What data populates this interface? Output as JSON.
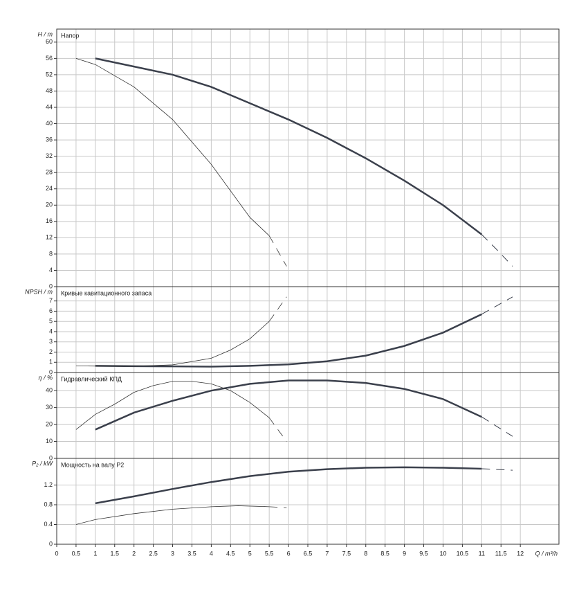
{
  "chart_data": [
    {
      "type": "line",
      "title": "Напор",
      "ylabel": "H / m",
      "xlim": [
        0,
        13
      ],
      "ylim": [
        0,
        63.2
      ],
      "xticks": [
        0,
        0.5,
        1,
        1.5,
        2,
        2.5,
        3,
        3.5,
        4,
        4.5,
        5,
        5.5,
        6,
        6.5,
        7,
        7.5,
        8,
        8.5,
        9,
        9.5,
        10,
        10.5,
        11,
        11.5,
        12
      ],
      "yticks": [
        0,
        4,
        8,
        12,
        16,
        20,
        24,
        28,
        32,
        36,
        40,
        44,
        48,
        52,
        56,
        60
      ],
      "grid": true,
      "series": [
        {
          "color": "#3b404c",
          "width": 2.5,
          "dash": false,
          "x": [
            1,
            2,
            3,
            4,
            5,
            6,
            7,
            8,
            9,
            10,
            11
          ],
          "values": [
            56,
            54,
            52,
            49,
            45,
            41,
            36.5,
            31.5,
            26,
            20,
            12.8
          ]
        },
        {
          "color": "#3b404c",
          "width": 1,
          "dash": true,
          "x": [
            11,
            11.4,
            11.8
          ],
          "values": [
            12.8,
            9,
            5
          ]
        },
        {
          "color": "#333333",
          "width": 0.8,
          "dash": false,
          "x": [
            0.5,
            1,
            2,
            3,
            4,
            5,
            5.5
          ],
          "values": [
            56,
            54.5,
            49,
            41,
            30,
            17,
            12.5
          ]
        },
        {
          "color": "#333333",
          "width": 0.8,
          "dash": true,
          "x": [
            5.5,
            5.95
          ],
          "values": [
            12.5,
            5
          ]
        }
      ]
    },
    {
      "type": "line",
      "title": "Кривые кавитационного запаса",
      "ylabel": "NPSH / m",
      "xlim": [
        0,
        13
      ],
      "ylim": [
        0,
        8.4
      ],
      "xticks": [
        0,
        0.5,
        1,
        1.5,
        2,
        2.5,
        3,
        3.5,
        4,
        4.5,
        5,
        5.5,
        6,
        6.5,
        7,
        7.5,
        8,
        8.5,
        9,
        9.5,
        10,
        10.5,
        11,
        11.5,
        12
      ],
      "yticks": [
        0,
        1,
        2,
        3,
        4,
        5,
        6,
        7
      ],
      "grid": true,
      "series": [
        {
          "color": "#3b404c",
          "width": 2.5,
          "dash": false,
          "x": [
            1,
            2,
            3,
            4,
            5,
            6,
            7,
            8,
            9,
            10,
            11
          ],
          "values": [
            0.65,
            0.62,
            0.6,
            0.58,
            0.65,
            0.8,
            1.1,
            1.65,
            2.6,
            3.9,
            5.7
          ]
        },
        {
          "color": "#3b404c",
          "width": 1,
          "dash": true,
          "x": [
            11,
            11.8
          ],
          "values": [
            5.7,
            7.4
          ]
        },
        {
          "color": "#333333",
          "width": 0.8,
          "dash": false,
          "x": [
            0.5,
            1,
            2,
            3,
            4,
            4.5,
            5,
            5.5
          ],
          "values": [
            0.65,
            0.63,
            0.62,
            0.75,
            1.4,
            2.2,
            3.3,
            5
          ]
        },
        {
          "color": "#333333",
          "width": 0.8,
          "dash": true,
          "x": [
            5.5,
            5.95
          ],
          "values": [
            5,
            7.4
          ]
        }
      ]
    },
    {
      "type": "line",
      "title": "Гидравлический КПД",
      "ylabel": "η / %",
      "xlim": [
        0,
        13
      ],
      "ylim": [
        0,
        50.7
      ],
      "xticks": [
        0,
        0.5,
        1,
        1.5,
        2,
        2.5,
        3,
        3.5,
        4,
        4.5,
        5,
        5.5,
        6,
        6.5,
        7,
        7.5,
        8,
        8.5,
        9,
        9.5,
        10,
        10.5,
        11,
        11.5,
        12
      ],
      "yticks": [
        0,
        10,
        20,
        30,
        40
      ],
      "grid": true,
      "series": [
        {
          "color": "#3b404c",
          "width": 2.5,
          "dash": false,
          "x": [
            1,
            1.5,
            2,
            3,
            4,
            5,
            6,
            7,
            8,
            9,
            10,
            11
          ],
          "values": [
            17,
            22,
            27,
            34,
            40,
            44,
            46,
            46,
            44.5,
            41,
            35,
            24.5
          ]
        },
        {
          "color": "#3b404c",
          "width": 1,
          "dash": true,
          "x": [
            11,
            11.8
          ],
          "values": [
            24.5,
            13
          ]
        },
        {
          "color": "#333333",
          "width": 0.8,
          "dash": false,
          "x": [
            0.5,
            1,
            1.5,
            2,
            2.5,
            3,
            3.5,
            4,
            4.5,
            5,
            5.5
          ],
          "values": [
            17,
            26,
            32,
            39,
            43,
            45.5,
            45.5,
            44,
            40,
            33,
            24
          ]
        },
        {
          "color": "#333333",
          "width": 0.8,
          "dash": true,
          "x": [
            5.5,
            5.95
          ],
          "values": [
            24,
            10
          ]
        }
      ]
    },
    {
      "type": "line",
      "title": "Мощность на валу P2",
      "ylabel": "P₂ / kW",
      "xlabel": "Q / m³/h",
      "xlim": [
        0,
        13
      ],
      "ylim": [
        0,
        1.74
      ],
      "xticks": [
        0,
        0.5,
        1,
        1.5,
        2,
        2.5,
        3,
        3.5,
        4,
        4.5,
        5,
        5.5,
        6,
        6.5,
        7,
        7.5,
        8,
        8.5,
        9,
        9.5,
        10,
        10.5,
        11,
        11.5,
        12
      ],
      "yticks": [
        0,
        0.4,
        0.8,
        1.2
      ],
      "grid": true,
      "series": [
        {
          "color": "#3b404c",
          "width": 2.5,
          "dash": false,
          "x": [
            1,
            2,
            3,
            4,
            5,
            6,
            7,
            8,
            9,
            10,
            11
          ],
          "values": [
            0.83,
            0.97,
            1.12,
            1.26,
            1.38,
            1.47,
            1.52,
            1.55,
            1.56,
            1.55,
            1.53
          ]
        },
        {
          "color": "#3b404c",
          "width": 1,
          "dash": true,
          "x": [
            11,
            11.8
          ],
          "values": [
            1.53,
            1.5
          ]
        },
        {
          "color": "#333333",
          "width": 0.8,
          "dash": false,
          "x": [
            0.5,
            1,
            2,
            3,
            4,
            4.7,
            5.5
          ],
          "values": [
            0.4,
            0.5,
            0.62,
            0.71,
            0.76,
            0.78,
            0.76
          ]
        },
        {
          "color": "#333333",
          "width": 0.8,
          "dash": true,
          "x": [
            5.5,
            5.95
          ],
          "values": [
            0.76,
            0.74
          ]
        }
      ]
    }
  ]
}
